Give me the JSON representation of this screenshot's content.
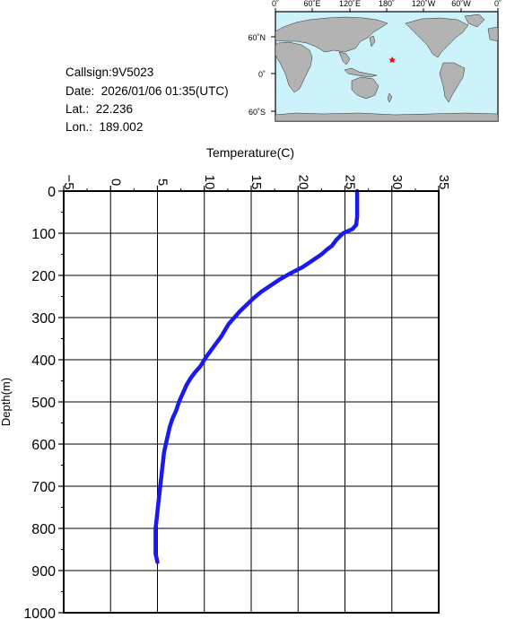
{
  "station": {
    "callsign": "Callsign:9V5023",
    "date": "Date:  2026/01/06 01:35(UTC)",
    "lat": "Lat.:  22.236",
    "lon": "Lon.:  189.002"
  },
  "map": {
    "top_labels": [
      "0˚",
      "60˚E",
      "120˚E",
      "180˚",
      "120˚W",
      "60˚W",
      "0˚"
    ],
    "side_labels": [
      "60˚N",
      "0˚",
      "60˚S"
    ],
    "ocean_color": "#ccf2fa",
    "land_color": "#b3b3b3",
    "marker": {
      "lon": 189.002,
      "lat": 22.236,
      "color": "#ff0000",
      "icon": "star-icon"
    }
  },
  "chart_data": {
    "type": "line",
    "xlabel": "Temperature(C)",
    "ylabel": "Depth(m)",
    "xlim": [
      -5,
      35
    ],
    "ylim": [
      1000,
      0
    ],
    "xticks": [
      "−5",
      "0",
      "5",
      "10",
      "15",
      "20",
      "25",
      "30",
      "35"
    ],
    "yticks": [
      "0",
      "100",
      "200",
      "300",
      "400",
      "500",
      "600",
      "700",
      "800",
      "900",
      "1000"
    ],
    "grid": true,
    "series": [
      {
        "color": "#1a1aee",
        "x": [
          26.3,
          26.3,
          26.3,
          26.3,
          26.2,
          25.8,
          24.8,
          24.1,
          23.6,
          23.0,
          22.5,
          21.5,
          20.5,
          19.2,
          18.0,
          17.0,
          16.0,
          15.2,
          14.5,
          13.8,
          13.2,
          12.6,
          12.2,
          11.8,
          11.3,
          10.8,
          10.3,
          10.0,
          9.6,
          9.0,
          8.5,
          8.1,
          7.7,
          7.3,
          7.0,
          6.6,
          6.3,
          6.1,
          5.9,
          5.7,
          5.6,
          5.5,
          5.4,
          5.3,
          5.2,
          5.1,
          5.0,
          4.9,
          4.8,
          4.8,
          4.8,
          5.0
        ],
        "y": [
          0,
          20,
          40,
          60,
          80,
          90,
          100,
          115,
          130,
          140,
          150,
          165,
          180,
          195,
          210,
          225,
          240,
          255,
          270,
          285,
          300,
          315,
          330,
          345,
          360,
          375,
          390,
          400,
          415,
          430,
          445,
          460,
          480,
          500,
          520,
          540,
          560,
          580,
          600,
          620,
          640,
          660,
          680,
          700,
          720,
          740,
          760,
          780,
          800,
          830,
          860,
          880
        ]
      }
    ]
  }
}
